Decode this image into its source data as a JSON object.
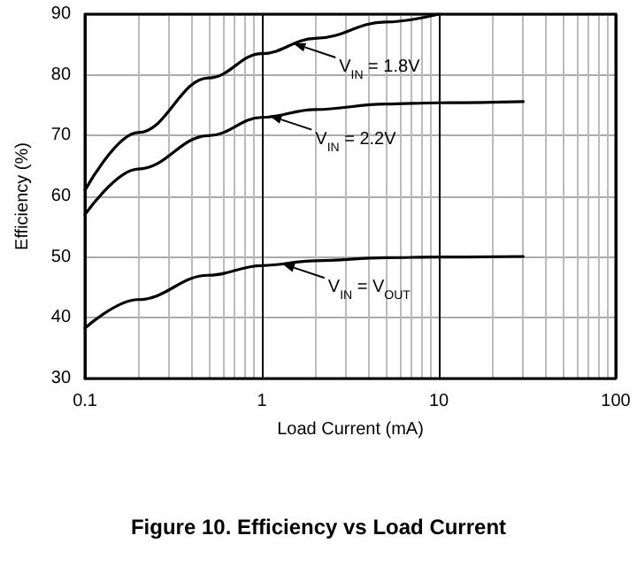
{
  "chart_data": {
    "type": "line",
    "title": "Figure 10. Efficiency vs Load Current",
    "xlabel": "Load Current (mA)",
    "ylabel": "Efficiency (%)",
    "log": "x",
    "xlim": [
      0.1,
      100
    ],
    "xticks": [
      0.1,
      1,
      10,
      100
    ],
    "ylim": [
      30,
      90
    ],
    "yticks": [
      30,
      40,
      50,
      60,
      70,
      80,
      90
    ],
    "grid": true,
    "marker": "none",
    "line_style": "solid",
    "x": [
      0.1,
      0.2,
      0.5,
      1,
      2,
      5,
      10,
      30
    ],
    "series": [
      {
        "color": "#000000",
        "x": [
          0.1,
          0.2,
          0.5,
          1,
          2,
          5,
          10
        ],
        "values": [
          61,
          70.5,
          79.5,
          83.5,
          86,
          88.7,
          90
        ]
      },
      {
        "color": "#000000",
        "values": [
          57,
          64.5,
          70,
          73,
          74.3,
          75.2,
          75.4,
          75.6
        ]
      },
      {
        "color": "#000000",
        "values": [
          38.3,
          43,
          47,
          48.6,
          49.4,
          49.9,
          50,
          50.1
        ]
      }
    ],
    "annotations": [
      {
        "text": "V$_{IN}$ = 1.8V",
        "x": 1.5,
        "y": 85.2
      },
      {
        "text": "V$_{IN}$ = 2.2V",
        "x": 1.1,
        "y": 73.3
      },
      {
        "text": "V$_{IN}$ = V$_{OUT}$",
        "x": 1.3,
        "y": 48.9
      }
    ]
  }
}
